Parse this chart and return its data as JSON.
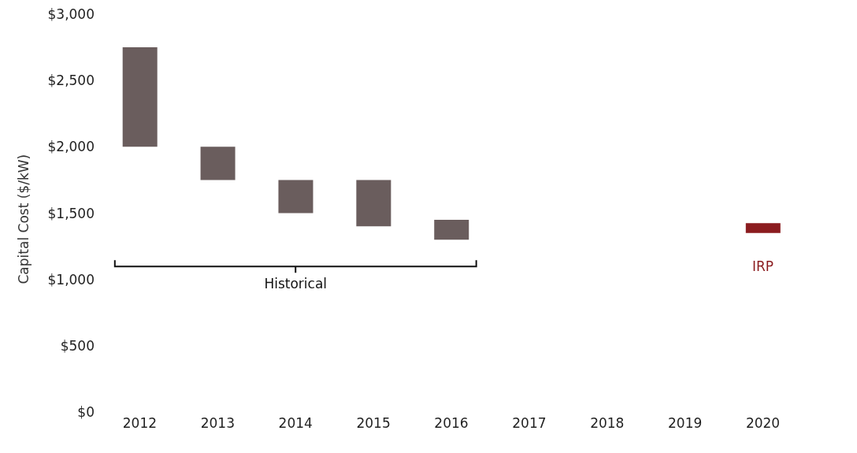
{
  "chart_data": {
    "type": "bar",
    "ylabel": "Capital Cost ($/kW)",
    "categories": [
      "2012",
      "2013",
      "2014",
      "2015",
      "2016",
      "2017",
      "2018",
      "2019",
      "2020"
    ],
    "base": [
      2000,
      1750,
      1500,
      1400,
      1300,
      null,
      null,
      null,
      1350
    ],
    "values": [
      750,
      250,
      250,
      350,
      150,
      null,
      null,
      null,
      75
    ],
    "colors": [
      "#6a5d5d",
      "#6a5d5d",
      "#6a5d5d",
      "#6a5d5d",
      "#6a5d5d",
      "#6a5d5d",
      "#6a5d5d",
      "#6a5d5d",
      "#8b1c1f"
    ],
    "ylim": [
      0,
      3000
    ],
    "yticks": [
      {
        "value": 0,
        "label": "$0"
      },
      {
        "value": 500,
        "label": "$500"
      },
      {
        "value": 1000,
        "label": "$1,000"
      },
      {
        "value": 1500,
        "label": "$1,500"
      },
      {
        "value": 2000,
        "label": "$2,000"
      },
      {
        "value": 2500,
        "label": "$2,500"
      },
      {
        "value": 3000,
        "label": "$3,000"
      }
    ],
    "annotations": [
      "Historical",
      {
        "text": "IRP",
        "x": "2020",
        "y": 1350
      }
    ],
    "grid": false,
    "legend": false
  }
}
